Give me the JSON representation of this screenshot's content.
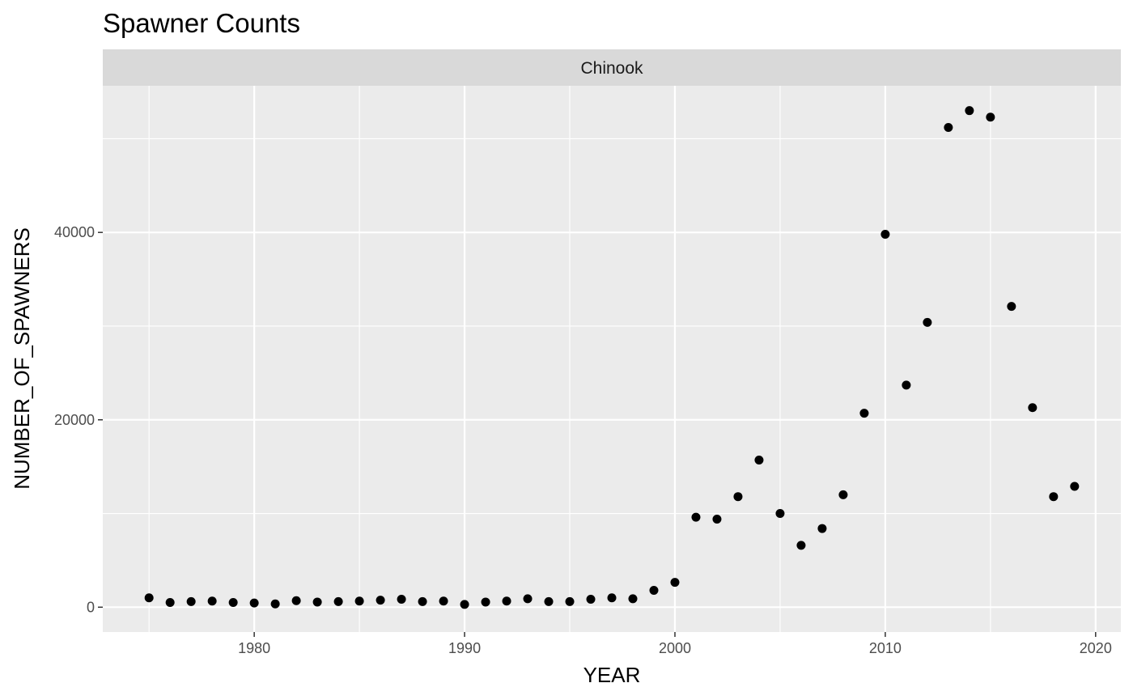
{
  "chart_data": {
    "type": "scatter",
    "title": "Spawner Counts",
    "facet": "Chinook",
    "xlabel": "YEAR",
    "ylabel": "NUMBER_OF_SPAWNERS",
    "xlim": [
      1972.8,
      2021.2
    ],
    "ylim": [
      -2650,
      55650
    ],
    "x_ticks": [
      1980,
      1990,
      2000,
      2010,
      2020
    ],
    "y_ticks": [
      0,
      20000,
      40000
    ],
    "grid": true,
    "point_color": "#000000",
    "panel_color": "#ebebeb",
    "strip_color": "#d9d9d9",
    "series": [
      {
        "x": [
          1975,
          1976,
          1977,
          1978,
          1979,
          1980,
          1981,
          1982,
          1983,
          1984,
          1985,
          1986,
          1987,
          1988,
          1989,
          1990,
          1991,
          1992,
          1993,
          1994,
          1995,
          1996,
          1997,
          1998,
          1999,
          2000,
          2001,
          2002,
          2003,
          2004,
          2005,
          2006,
          2007,
          2008,
          2009,
          2010,
          2011,
          2012,
          2013,
          2014,
          2015,
          2016,
          2017,
          2018,
          2019
        ],
        "y": [
          1000,
          500,
          600,
          650,
          500,
          450,
          350,
          700,
          550,
          600,
          650,
          750,
          850,
          600,
          650,
          300,
          550,
          650,
          900,
          600,
          600,
          850,
          1000,
          900,
          1800,
          2650,
          9600,
          9400,
          11800,
          15700,
          10000,
          6600,
          8400,
          12000,
          20700,
          39800,
          23700,
          30400,
          51200,
          53000,
          52300,
          32100,
          21300,
          11800,
          12900
        ]
      }
    ]
  }
}
